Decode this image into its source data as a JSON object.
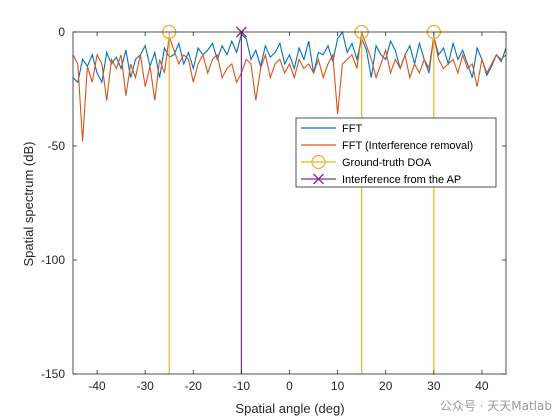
{
  "chart_data": {
    "type": "line",
    "xlabel": "Spatial angle (deg)",
    "ylabel": "Spatial spectrum (dB)",
    "xlim": [
      -45,
      45
    ],
    "ylim": [
      -150,
      0
    ],
    "xticks": [
      -40,
      -30,
      -20,
      -10,
      0,
      10,
      20,
      30,
      40
    ],
    "yticks": [
      0,
      -50,
      -100,
      -150
    ],
    "grid": false,
    "legend_position": "right",
    "series": [
      {
        "name": "FFT",
        "color": "#0072BD",
        "x": [
          -45,
          -44,
          -43,
          -42,
          -41,
          -40,
          -39,
          -38,
          -37,
          -36,
          -35,
          -34,
          -33,
          -32,
          -31,
          -30,
          -29,
          -28,
          -27,
          -26,
          -25,
          -24,
          -23,
          -22,
          -21,
          -20,
          -19,
          -18,
          -17,
          -16,
          -15,
          -14,
          -13,
          -12,
          -11,
          -10,
          -9,
          -8,
          -7,
          -6,
          -5,
          -4,
          -3,
          -2,
          -1,
          0,
          1,
          2,
          3,
          4,
          5,
          6,
          7,
          8,
          9,
          10,
          11,
          12,
          13,
          14,
          15,
          16,
          17,
          18,
          19,
          20,
          21,
          22,
          23,
          24,
          25,
          26,
          27,
          28,
          29,
          30,
          31,
          32,
          33,
          34,
          35,
          36,
          37,
          38,
          39,
          40,
          41,
          42,
          43,
          44,
          45
        ],
        "y": [
          -20,
          -22,
          -12,
          -15,
          -10,
          -18,
          -22,
          -9,
          -14,
          -11,
          -16,
          -8,
          -20,
          -12,
          -10,
          -6,
          -15,
          -9,
          -20,
          -7,
          -11,
          -10,
          -5,
          -14,
          -9,
          -16,
          -7,
          -10,
          -8,
          -5,
          -12,
          -6,
          -10,
          -4,
          -9,
          -1,
          -3,
          -12,
          -8,
          -15,
          -6,
          -11,
          -9,
          -5,
          -14,
          -10,
          -16,
          -7,
          -12,
          -4,
          -18,
          -9,
          -10,
          -6,
          -13,
          -3,
          0,
          -9,
          -5,
          -12,
          -3,
          -8,
          -20,
          -6,
          -10,
          -12,
          -4,
          -8,
          -16,
          -10,
          -6,
          -14,
          -5,
          -12,
          -18,
          -2,
          -10,
          -7,
          -14,
          -5,
          -12,
          -8,
          -14,
          -20,
          -7,
          -12,
          -19,
          -15,
          -10,
          -13,
          -7
        ]
      },
      {
        "name": "FFT (Interference removal)",
        "color": "#D95319",
        "x": [
          -45,
          -44,
          -43,
          -42,
          -41,
          -40,
          -39,
          -38,
          -37,
          -36,
          -35,
          -34,
          -33,
          -32,
          -31,
          -30,
          -29,
          -28,
          -27,
          -26,
          -25,
          -24,
          -23,
          -22,
          -21,
          -20,
          -19,
          -18,
          -17,
          -16,
          -15,
          -14,
          -13,
          -12,
          -11,
          -10,
          -9,
          -8,
          -7,
          -6,
          -5,
          -4,
          -3,
          -2,
          -1,
          0,
          1,
          2,
          3,
          4,
          5,
          6,
          7,
          8,
          9,
          10,
          11,
          12,
          13,
          14,
          15,
          16,
          17,
          18,
          19,
          20,
          21,
          22,
          23,
          24,
          25,
          26,
          27,
          28,
          29,
          30,
          31,
          32,
          33,
          34,
          35,
          36,
          37,
          38,
          39,
          40,
          41,
          42,
          43,
          44,
          45
        ],
        "y": [
          -10,
          -14,
          -48,
          -15,
          -22,
          -10,
          -14,
          -30,
          -12,
          -16,
          -10,
          -28,
          -14,
          -20,
          -10,
          -24,
          -15,
          -30,
          -12,
          -18,
          -2,
          -8,
          -14,
          -10,
          -12,
          -22,
          -14,
          -10,
          -18,
          -12,
          -10,
          -20,
          -16,
          -14,
          -22,
          -18,
          -12,
          -14,
          -30,
          -16,
          -10,
          -20,
          -14,
          -12,
          -18,
          -14,
          -20,
          -12,
          -16,
          -14,
          -18,
          -12,
          -20,
          -14,
          -10,
          -36,
          -14,
          -12,
          -10,
          -16,
          0,
          -6,
          -12,
          -20,
          -14,
          -8,
          -18,
          -12,
          -16,
          -10,
          -20,
          -14,
          -18,
          -12,
          -16,
          -2,
          -12,
          -16,
          -14,
          -12,
          -18,
          -10,
          -16,
          -14,
          -24,
          -12,
          -18,
          -14,
          -10,
          -12,
          -10
        ]
      },
      {
        "name": "Ground-truth DOA",
        "color": "#EDB120",
        "marker": "circle",
        "x": [
          -25,
          15,
          30
        ],
        "y": [
          0,
          0,
          0
        ]
      },
      {
        "name": "Interference from the AP",
        "color": "#7E2F8E",
        "marker": "x",
        "x": [
          -10
        ],
        "y": [
          0
        ]
      }
    ]
  },
  "watermark": "公众号 · 天天Matlab"
}
